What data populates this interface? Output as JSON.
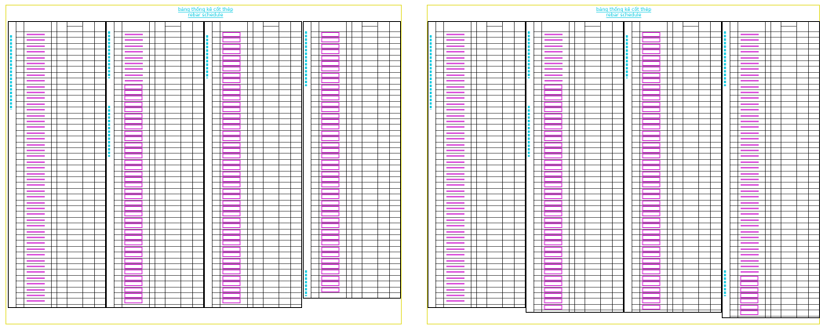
{
  "sheets": [
    {
      "title": [
        "bảng thống kê cốt thép",
        "rebar schedule"
      ]
    },
    {
      "title": [
        "bảng thống kê cốt thép",
        "rebar schedule"
      ]
    }
  ]
}
